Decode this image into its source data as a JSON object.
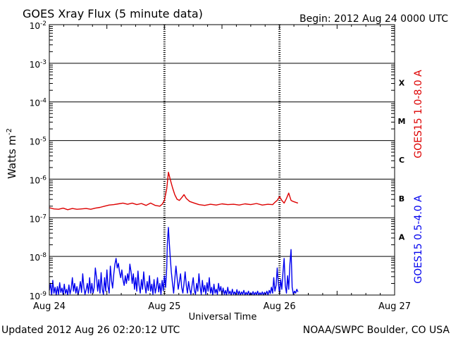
{
  "chart_data": {
    "type": "line",
    "title": "GOES Xray Flux (5 minute data)",
    "begin_label": "Begin:  2012 Aug 24 0000 UTC",
    "xlabel": "Universal Time",
    "ylabel_base": "Watts m",
    "ylabel_exp": "-2",
    "footer_left": "Updated 2012 Aug 26 02:20:12 UTC",
    "footer_right": "NOAA/SWPC Boulder, CO USA",
    "x_unit": "days since Aug 24 00:00 UTC",
    "x_range": [
      0,
      3
    ],
    "x_ticks": [
      {
        "x": 0,
        "label": "Aug 24"
      },
      {
        "x": 1,
        "label": "Aug 25"
      },
      {
        "x": 2,
        "label": "Aug 26"
      },
      {
        "x": 3,
        "label": "Aug 27"
      }
    ],
    "y_scale": "log",
    "y_range_exp": [
      -9,
      -2
    ],
    "y_ticks": [
      {
        "exp": -2,
        "base": "10",
        "sup": "-2"
      },
      {
        "exp": -3,
        "base": "10",
        "sup": "-3"
      },
      {
        "exp": -4,
        "base": "10",
        "sup": "-4"
      },
      {
        "exp": -5,
        "base": "10",
        "sup": "-5"
      },
      {
        "exp": -6,
        "base": "10",
        "sup": "-6"
      },
      {
        "exp": -7,
        "base": "10",
        "sup": "-7"
      },
      {
        "exp": -8,
        "base": "10",
        "sup": "-8"
      },
      {
        "exp": -9,
        "base": "10",
        "sup": "-9"
      }
    ],
    "flare_classes": [
      {
        "label": "X",
        "exp_mid": -3.5
      },
      {
        "label": "M",
        "exp_mid": -4.5
      },
      {
        "label": "C",
        "exp_mid": -5.5
      },
      {
        "label": "B",
        "exp_mid": -6.5
      },
      {
        "label": "A",
        "exp_mid": -7.5
      }
    ],
    "series": [
      {
        "name": "GOES15 1.0-8.0 A",
        "color": "#dd0000",
        "points": [
          [
            0.0,
            -6.74
          ],
          [
            0.04,
            -6.77
          ],
          [
            0.08,
            -6.78
          ],
          [
            0.12,
            -6.75
          ],
          [
            0.16,
            -6.79
          ],
          [
            0.2,
            -6.76
          ],
          [
            0.24,
            -6.78
          ],
          [
            0.28,
            -6.77
          ],
          [
            0.32,
            -6.76
          ],
          [
            0.36,
            -6.78
          ],
          [
            0.4,
            -6.75
          ],
          [
            0.44,
            -6.73
          ],
          [
            0.48,
            -6.7
          ],
          [
            0.52,
            -6.67
          ],
          [
            0.56,
            -6.66
          ],
          [
            0.6,
            -6.64
          ],
          [
            0.64,
            -6.62
          ],
          [
            0.68,
            -6.65
          ],
          [
            0.72,
            -6.62
          ],
          [
            0.76,
            -6.66
          ],
          [
            0.8,
            -6.63
          ],
          [
            0.84,
            -6.68
          ],
          [
            0.88,
            -6.62
          ],
          [
            0.92,
            -6.68
          ],
          [
            0.96,
            -6.7
          ],
          [
            0.98,
            -6.65
          ],
          [
            1.0,
            -6.55
          ],
          [
            1.02,
            -6.25
          ],
          [
            1.035,
            -5.82
          ],
          [
            1.05,
            -6.0
          ],
          [
            1.07,
            -6.22
          ],
          [
            1.09,
            -6.4
          ],
          [
            1.11,
            -6.52
          ],
          [
            1.13,
            -6.55
          ],
          [
            1.15,
            -6.48
          ],
          [
            1.17,
            -6.4
          ],
          [
            1.19,
            -6.5
          ],
          [
            1.22,
            -6.58
          ],
          [
            1.26,
            -6.62
          ],
          [
            1.3,
            -6.66
          ],
          [
            1.35,
            -6.68
          ],
          [
            1.4,
            -6.65
          ],
          [
            1.45,
            -6.67
          ],
          [
            1.5,
            -6.64
          ],
          [
            1.55,
            -6.66
          ],
          [
            1.6,
            -6.65
          ],
          [
            1.65,
            -6.67
          ],
          [
            1.7,
            -6.64
          ],
          [
            1.75,
            -6.66
          ],
          [
            1.8,
            -6.63
          ],
          [
            1.85,
            -6.67
          ],
          [
            1.9,
            -6.65
          ],
          [
            1.94,
            -6.66
          ],
          [
            1.96,
            -6.6
          ],
          [
            1.98,
            -6.55
          ],
          [
            2.0,
            -6.45
          ],
          [
            2.02,
            -6.55
          ],
          [
            2.04,
            -6.62
          ],
          [
            2.06,
            -6.5
          ],
          [
            2.08,
            -6.36
          ],
          [
            2.1,
            -6.55
          ],
          [
            2.12,
            -6.58
          ],
          [
            2.14,
            -6.6
          ],
          [
            2.16,
            -6.62
          ]
        ]
      },
      {
        "name": "GOES15 0.5-4.0 A",
        "color": "#0000ee",
        "points": [
          [
            0.0,
            -8.88
          ],
          [
            0.01,
            -8.7
          ],
          [
            0.02,
            -9.0
          ],
          [
            0.03,
            -8.62
          ],
          [
            0.04,
            -8.95
          ],
          [
            0.05,
            -8.8
          ],
          [
            0.06,
            -9.0
          ],
          [
            0.07,
            -8.78
          ],
          [
            0.08,
            -8.98
          ],
          [
            0.09,
            -8.68
          ],
          [
            0.1,
            -8.93
          ],
          [
            0.11,
            -8.82
          ],
          [
            0.12,
            -8.99
          ],
          [
            0.13,
            -8.72
          ],
          [
            0.14,
            -8.96
          ],
          [
            0.15,
            -8.85
          ],
          [
            0.16,
            -9.0
          ],
          [
            0.17,
            -8.74
          ],
          [
            0.18,
            -8.97
          ],
          [
            0.19,
            -8.84
          ],
          [
            0.2,
            -8.55
          ],
          [
            0.21,
            -8.9
          ],
          [
            0.22,
            -8.7
          ],
          [
            0.23,
            -8.95
          ],
          [
            0.24,
            -8.78
          ],
          [
            0.25,
            -9.0
          ],
          [
            0.26,
            -8.84
          ],
          [
            0.27,
            -8.65
          ],
          [
            0.28,
            -8.93
          ],
          [
            0.29,
            -8.45
          ],
          [
            0.3,
            -8.8
          ],
          [
            0.31,
            -8.98
          ],
          [
            0.32,
            -8.86
          ],
          [
            0.33,
            -8.7
          ],
          [
            0.34,
            -8.95
          ],
          [
            0.35,
            -8.55
          ],
          [
            0.36,
            -8.95
          ],
          [
            0.37,
            -8.7
          ],
          [
            0.38,
            -8.95
          ],
          [
            0.39,
            -8.8
          ],
          [
            0.4,
            -8.3
          ],
          [
            0.41,
            -8.55
          ],
          [
            0.42,
            -8.9
          ],
          [
            0.43,
            -8.6
          ],
          [
            0.44,
            -8.95
          ],
          [
            0.45,
            -8.42
          ],
          [
            0.46,
            -8.85
          ],
          [
            0.47,
            -8.98
          ],
          [
            0.48,
            -8.55
          ],
          [
            0.49,
            -8.9
          ],
          [
            0.5,
            -8.35
          ],
          [
            0.51,
            -8.78
          ],
          [
            0.52,
            -8.95
          ],
          [
            0.53,
            -8.25
          ],
          [
            0.54,
            -8.62
          ],
          [
            0.55,
            -8.82
          ],
          [
            0.56,
            -8.45
          ],
          [
            0.57,
            -8.2
          ],
          [
            0.58,
            -8.05
          ],
          [
            0.59,
            -8.3
          ],
          [
            0.6,
            -8.18
          ],
          [
            0.61,
            -8.4
          ],
          [
            0.62,
            -8.55
          ],
          [
            0.63,
            -8.35
          ],
          [
            0.64,
            -8.6
          ],
          [
            0.65,
            -8.75
          ],
          [
            0.66,
            -8.5
          ],
          [
            0.67,
            -8.7
          ],
          [
            0.68,
            -8.45
          ],
          [
            0.69,
            -8.62
          ],
          [
            0.7,
            -8.2
          ],
          [
            0.71,
            -8.4
          ],
          [
            0.72,
            -8.7
          ],
          [
            0.73,
            -8.45
          ],
          [
            0.74,
            -8.85
          ],
          [
            0.75,
            -8.55
          ],
          [
            0.76,
            -8.9
          ],
          [
            0.77,
            -8.38
          ],
          [
            0.78,
            -8.75
          ],
          [
            0.79,
            -8.95
          ],
          [
            0.8,
            -8.6
          ],
          [
            0.81,
            -8.85
          ],
          [
            0.82,
            -8.4
          ],
          [
            0.83,
            -8.75
          ],
          [
            0.84,
            -8.95
          ],
          [
            0.85,
            -8.65
          ],
          [
            0.86,
            -8.88
          ],
          [
            0.87,
            -8.5
          ],
          [
            0.88,
            -8.9
          ],
          [
            0.89,
            -8.72
          ],
          [
            0.9,
            -8.98
          ],
          [
            0.91,
            -8.6
          ],
          [
            0.92,
            -8.95
          ],
          [
            0.93,
            -8.8
          ],
          [
            0.94,
            -8.55
          ],
          [
            0.95,
            -8.92
          ],
          [
            0.96,
            -8.7
          ],
          [
            0.97,
            -8.98
          ],
          [
            0.98,
            -8.62
          ],
          [
            0.99,
            -8.88
          ],
          [
            1.0,
            -8.5
          ],
          [
            1.01,
            -8.8
          ],
          [
            1.02,
            -8.3
          ],
          [
            1.025,
            -7.7
          ],
          [
            1.03,
            -7.45
          ],
          [
            1.035,
            -7.25
          ],
          [
            1.04,
            -7.55
          ],
          [
            1.05,
            -8.0
          ],
          [
            1.06,
            -8.4
          ],
          [
            1.07,
            -8.7
          ],
          [
            1.08,
            -8.95
          ],
          [
            1.09,
            -8.6
          ],
          [
            1.1,
            -8.25
          ],
          [
            1.11,
            -8.55
          ],
          [
            1.12,
            -8.85
          ],
          [
            1.13,
            -8.65
          ],
          [
            1.14,
            -8.45
          ],
          [
            1.15,
            -8.8
          ],
          [
            1.16,
            -8.95
          ],
          [
            1.17,
            -8.7
          ],
          [
            1.18,
            -8.4
          ],
          [
            1.19,
            -8.75
          ],
          [
            1.2,
            -8.95
          ],
          [
            1.21,
            -8.65
          ],
          [
            1.22,
            -8.85
          ],
          [
            1.23,
            -8.98
          ],
          [
            1.24,
            -8.75
          ],
          [
            1.25,
            -8.55
          ],
          [
            1.26,
            -8.88
          ],
          [
            1.27,
            -8.98
          ],
          [
            1.28,
            -8.7
          ],
          [
            1.29,
            -8.9
          ],
          [
            1.3,
            -8.45
          ],
          [
            1.31,
            -8.8
          ],
          [
            1.32,
            -8.98
          ],
          [
            1.33,
            -8.62
          ],
          [
            1.34,
            -8.92
          ],
          [
            1.35,
            -8.75
          ],
          [
            1.36,
            -8.98
          ],
          [
            1.37,
            -8.68
          ],
          [
            1.38,
            -8.9
          ],
          [
            1.39,
            -8.55
          ],
          [
            1.4,
            -8.95
          ],
          [
            1.41,
            -8.8
          ],
          [
            1.42,
            -9.0
          ],
          [
            1.43,
            -8.72
          ],
          [
            1.44,
            -8.95
          ],
          [
            1.45,
            -8.85
          ],
          [
            1.46,
            -8.98
          ],
          [
            1.47,
            -8.7
          ],
          [
            1.48,
            -8.9
          ],
          [
            1.49,
            -8.78
          ],
          [
            1.5,
            -9.0
          ],
          [
            1.51,
            -8.82
          ],
          [
            1.52,
            -8.98
          ],
          [
            1.53,
            -8.88
          ],
          [
            1.54,
            -9.0
          ],
          [
            1.55,
            -8.8
          ],
          [
            1.56,
            -8.97
          ],
          [
            1.57,
            -8.9
          ],
          [
            1.58,
            -9.0
          ],
          [
            1.59,
            -8.85
          ],
          [
            1.6,
            -8.98
          ],
          [
            1.61,
            -8.92
          ],
          [
            1.62,
            -9.0
          ],
          [
            1.63,
            -8.86
          ],
          [
            1.64,
            -8.99
          ],
          [
            1.65,
            -8.9
          ],
          [
            1.66,
            -9.0
          ],
          [
            1.67,
            -8.92
          ],
          [
            1.68,
            -8.98
          ],
          [
            1.69,
            -8.88
          ],
          [
            1.7,
            -9.0
          ],
          [
            1.71,
            -8.93
          ],
          [
            1.72,
            -8.99
          ],
          [
            1.73,
            -8.9
          ],
          [
            1.74,
            -9.0
          ],
          [
            1.75,
            -8.94
          ],
          [
            1.76,
            -8.99
          ],
          [
            1.77,
            -8.91
          ],
          [
            1.78,
            -9.0
          ],
          [
            1.79,
            -8.93
          ],
          [
            1.8,
            -8.99
          ],
          [
            1.81,
            -8.9
          ],
          [
            1.82,
            -9.0
          ],
          [
            1.83,
            -8.94
          ],
          [
            1.84,
            -8.99
          ],
          [
            1.85,
            -8.92
          ],
          [
            1.86,
            -9.0
          ],
          [
            1.87,
            -8.93
          ],
          [
            1.88,
            -8.98
          ],
          [
            1.89,
            -8.9
          ],
          [
            1.9,
            -9.0
          ],
          [
            1.91,
            -8.88
          ],
          [
            1.92,
            -8.96
          ],
          [
            1.93,
            -8.8
          ],
          [
            1.94,
            -8.95
          ],
          [
            1.95,
            -8.55
          ],
          [
            1.96,
            -8.9
          ],
          [
            1.97,
            -8.75
          ],
          [
            1.98,
            -8.3
          ],
          [
            1.99,
            -8.7
          ],
          [
            2.0,
            -8.95
          ],
          [
            2.01,
            -8.6
          ],
          [
            2.02,
            -8.85
          ],
          [
            2.03,
            -8.4
          ],
          [
            2.04,
            -8.05
          ],
          [
            2.05,
            -8.75
          ],
          [
            2.06,
            -8.95
          ],
          [
            2.07,
            -8.5
          ],
          [
            2.08,
            -8.85
          ],
          [
            2.09,
            -8.2
          ],
          [
            2.1,
            -7.82
          ],
          [
            2.105,
            -8.3
          ],
          [
            2.11,
            -8.8
          ],
          [
            2.12,
            -8.98
          ],
          [
            2.13,
            -8.9
          ],
          [
            2.14,
            -8.95
          ],
          [
            2.15,
            -8.85
          ],
          [
            2.16,
            -8.92
          ]
        ]
      }
    ]
  }
}
